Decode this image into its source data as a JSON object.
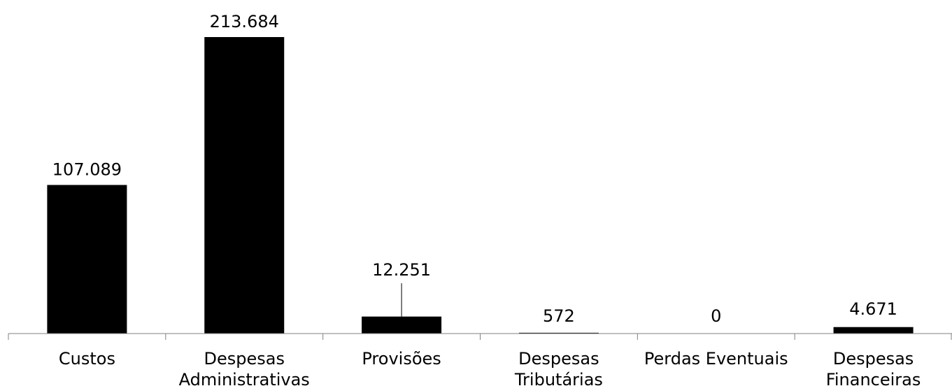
{
  "chart_data": {
    "type": "bar",
    "title": "",
    "xlabel": "",
    "ylabel": "",
    "ylim": [
      0,
      213684
    ],
    "grid": false,
    "legend": "none",
    "bar_color": "#000000",
    "axis_color": "#808080",
    "categories": [
      [
        "Custos"
      ],
      [
        "Despesas",
        "Administrativas"
      ],
      [
        "Provisões"
      ],
      [
        "Despesas",
        "Tributárias"
      ],
      [
        "Perdas Eventuais"
      ],
      [
        "Despesas",
        "Financeiras"
      ]
    ],
    "values": [
      107089,
      213684,
      12251,
      572,
      0,
      4671
    ],
    "value_labels": [
      "107.089",
      "213.684",
      "12.251",
      "572",
      "0",
      "4.671"
    ]
  }
}
